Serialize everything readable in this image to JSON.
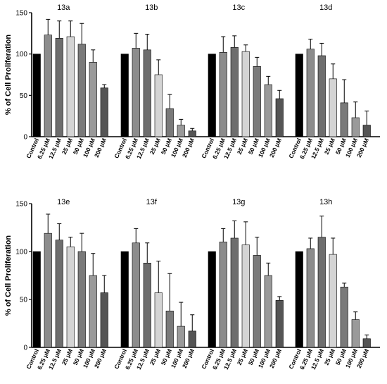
{
  "chart_data": {
    "type": "bar",
    "ylabel": "% of Cell Proliferation",
    "ylim": [
      0,
      150
    ],
    "yticks": [
      0,
      50,
      100,
      150
    ],
    "categories": [
      "Control",
      "6.25 μM",
      "12.5 μM",
      "25 μM",
      "50 μM",
      "100 μM",
      "200 μM"
    ],
    "bar_colors": [
      "#000000",
      "#8c8c8c",
      "#6e6e6e",
      "#d4d4d4",
      "#7a7a7a",
      "#9a9a9a",
      "#555555"
    ],
    "rows": [
      {
        "panels": [
          {
            "title": "13a",
            "values": [
              100,
              123,
              119,
              121,
              112,
              90,
              59
            ],
            "errors": [
              0,
              19,
              21,
              19,
              25,
              15,
              4
            ]
          },
          {
            "title": "13b",
            "values": [
              100,
              107,
              105,
              75,
              34,
              14,
              7
            ],
            "errors": [
              0,
              18,
              19,
              18,
              17,
              7,
              3
            ]
          },
          {
            "title": "13c",
            "values": [
              100,
              102,
              108,
              103,
              85,
              63,
              46
            ],
            "errors": [
              0,
              19,
              14,
              8,
              11,
              10,
              10
            ]
          },
          {
            "title": "13d",
            "values": [
              100,
              106,
              98,
              70,
              41,
              23,
              14
            ],
            "errors": [
              0,
              12,
              15,
              18,
              28,
              19,
              17
            ]
          }
        ]
      },
      {
        "panels": [
          {
            "title": "13e",
            "values": [
              100,
              119,
              112,
              105,
              100,
              75,
              57
            ],
            "errors": [
              0,
              20,
              17,
              10,
              19,
              23,
              18
            ]
          },
          {
            "title": "13f",
            "values": [
              100,
              109,
              88,
              57,
              38,
              22,
              17
            ],
            "errors": [
              0,
              15,
              21,
              33,
              39,
              25,
              17
            ]
          },
          {
            "title": "13g",
            "values": [
              100,
              110,
              114,
              107,
              96,
              75,
              49
            ],
            "errors": [
              0,
              14,
              18,
              24,
              19,
              13,
              4
            ]
          },
          {
            "title": "13h",
            "values": [
              100,
              103,
              115,
              97,
              63,
              29,
              9
            ],
            "errors": [
              0,
              11,
              22,
              17,
              4,
              8,
              4
            ]
          }
        ]
      }
    ]
  }
}
